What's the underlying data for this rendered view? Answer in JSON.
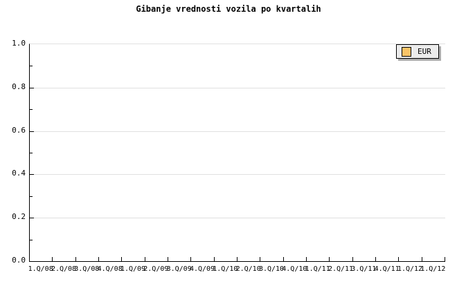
{
  "title": "Gibanje vrednosti vozila po kvartalih",
  "legend": {
    "label": "EUR",
    "swatch_color": "#FAC468"
  },
  "colors": {
    "background": "#ffffff",
    "axis": "#000000",
    "grid": "#e0e0e0",
    "legend_bg": "#ececec",
    "legend_shadow": "#adadad",
    "series_eur": "#FAC468"
  },
  "chart_data": {
    "type": "line",
    "title": "Gibanje vrednosti vozila po kvartalih",
    "categories": [
      "1.Q/08",
      "2.Q/08",
      "3.Q/08",
      "4.Q/08",
      "1.Q/09",
      "2.Q/09",
      "3.Q/09",
      "4.Q/09",
      "1.Q/10",
      "2.Q/10",
      "3.Q/10",
      "4.Q/10",
      "1.Q/11",
      "2.Q/11",
      "3.Q/11",
      "4.Q/11",
      "1.Q/12",
      "1.Q/12"
    ],
    "series": [
      {
        "name": "EUR",
        "color": "#FAC468",
        "values": []
      }
    ],
    "xlabel": "",
    "ylabel": "",
    "ylim": [
      0.0,
      1.0
    ],
    "y_major_tick_step": 0.2,
    "y_minor_tick_step": 0.1,
    "y_tick_labels": [
      "1.0",
      "0.8",
      "0.6",
      "0.4",
      "0.2",
      "0.0"
    ],
    "grid": true,
    "gridlines": "horizontal-major",
    "legend_position": "top-right",
    "plot_empty": true
  }
}
